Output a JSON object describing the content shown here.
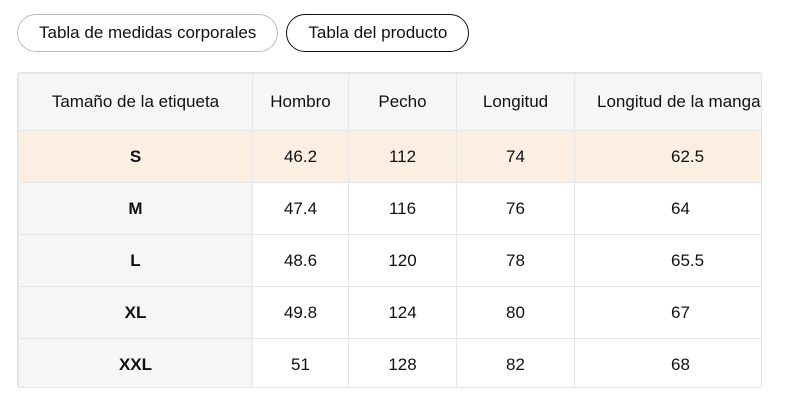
{
  "tabs": [
    "Tabla de medidas corporales",
    "Tabla del producto"
  ],
  "table": {
    "headers": [
      "Tamaño de la etiqueta",
      "Hombro",
      "Pecho",
      "Longitud",
      "Longitud de la manga"
    ],
    "rows": [
      [
        "S",
        46.2,
        112,
        74,
        62.5
      ],
      [
        "M",
        47.4,
        116,
        76,
        64
      ],
      [
        "L",
        48.6,
        120,
        78,
        65.5
      ],
      [
        "XL",
        49.8,
        124,
        80,
        67
      ],
      [
        "XXL",
        51,
        128,
        82,
        68
      ]
    ]
  }
}
